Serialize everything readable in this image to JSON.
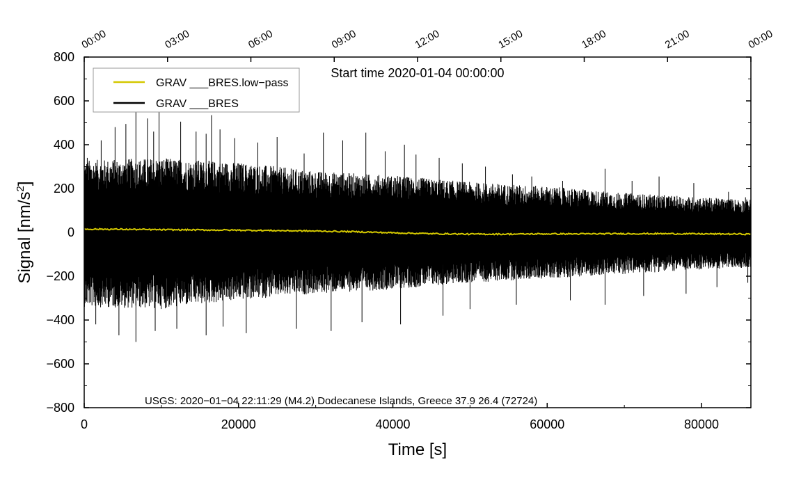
{
  "chart_data": {
    "type": "line",
    "title": "Start time 2020-01-04 00:00:00",
    "xlabel": "Time [s]",
    "ylabel_main": "Signal [nm/s",
    "ylabel_sup": "2",
    "ylabel_end": "]",
    "xlim": [
      0,
      86400
    ],
    "ylim": [
      -800,
      800
    ],
    "x_ticks": [
      0,
      20000,
      40000,
      60000,
      80000
    ],
    "x_tick_labels": [
      "0",
      "20000",
      "40000",
      "60000",
      "80000"
    ],
    "y_ticks": [
      -800,
      -600,
      -400,
      -200,
      0,
      200,
      400,
      600,
      800
    ],
    "y_tick_labels": [
      "−800",
      "−600",
      "−400",
      "−200",
      "0",
      "200",
      "400",
      "600",
      "800"
    ],
    "top_ticks_seconds": [
      0,
      10800,
      21600,
      32400,
      43200,
      54000,
      64800,
      75600,
      86400
    ],
    "top_tick_labels": [
      "00:00",
      "03:00",
      "06:00",
      "09:00",
      "12:00",
      "15:00",
      "18:00",
      "21:00",
      "00:00"
    ],
    "legend_position": "top-left",
    "annotation": "USGS: 2020−01−04 22:11:29 (M4.2) Dodecanese Islands, Greece 37.9 26.4 (72724)",
    "series": [
      {
        "name": "GRAV ___BRES.low−pass",
        "color": "#d4c800",
        "kind": "smooth",
        "x": [
          0,
          5000,
          10000,
          15000,
          20000,
          25000,
          30000,
          35000,
          40000,
          45000,
          50000,
          55000,
          60000,
          65000,
          70000,
          75000,
          80000,
          86400
        ],
        "y": [
          15,
          14,
          12,
          11,
          10,
          8,
          6,
          3,
          -2,
          -6,
          -8,
          -8,
          -7,
          -7,
          -6,
          -6,
          -7,
          -8
        ]
      },
      {
        "name": "GRAV ___BRES",
        "color": "#000000",
        "kind": "noise",
        "envelope_x": [
          0,
          10000,
          20000,
          30000,
          40000,
          50000,
          60000,
          70000,
          80000,
          86400
        ],
        "envelope_upper": [
          330,
          340,
          320,
          280,
          260,
          230,
          210,
          180,
          160,
          150
        ],
        "envelope_lower": [
          -340,
          -350,
          -310,
          -280,
          -260,
          -230,
          -210,
          -190,
          -170,
          -160
        ],
        "spikes_x": [
          400,
          2200,
          4000,
          5400,
          6700,
          8200,
          9000,
          9700,
          12500,
          14500,
          15800,
          16500,
          17600,
          19500,
          22500,
          25000,
          28500,
          31000,
          33500,
          36500,
          39000,
          41500,
          43000,
          46000,
          49000,
          52000,
          55500,
          58000,
          62000,
          67500,
          71000,
          74500,
          79000,
          83500,
          85700
        ],
        "spikes_y": [
          340,
          420,
          480,
          495,
          570,
          520,
          460,
          555,
          505,
          460,
          450,
          535,
          470,
          430,
          410,
          435,
          360,
          455,
          420,
          455,
          370,
          400,
          355,
          340,
          315,
          300,
          265,
          255,
          235,
          290,
          235,
          255,
          225,
          185,
          160
        ],
        "neg_spikes_x": [
          1500,
          4500,
          6700,
          9200,
          12000,
          15800,
          18000,
          21000,
          27500,
          32000,
          36000,
          41000,
          46500,
          50000,
          56000,
          63000,
          67500,
          72500,
          78000,
          82000,
          86000
        ],
        "neg_spikes_y": [
          -420,
          -470,
          -500,
          -450,
          -440,
          -470,
          -430,
          -460,
          -440,
          -450,
          -410,
          -420,
          -380,
          -350,
          -330,
          -310,
          -330,
          -290,
          -280,
          -250,
          -230
        ]
      }
    ]
  }
}
